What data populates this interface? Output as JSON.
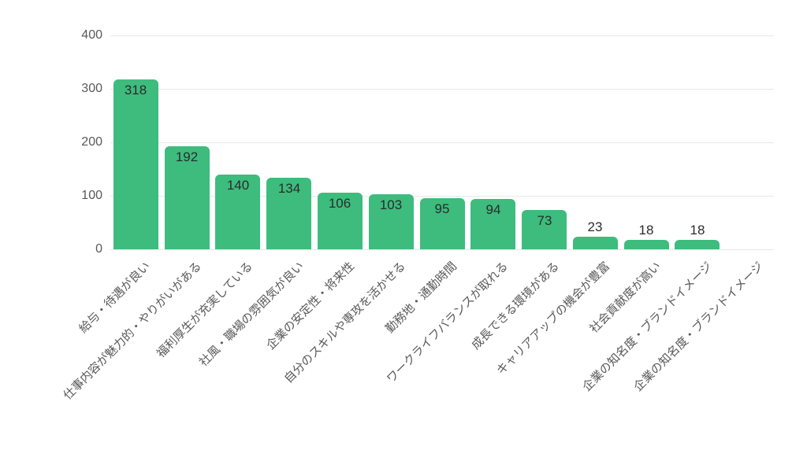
{
  "chart_data": {
    "type": "bar",
    "title": "",
    "xlabel": "",
    "ylabel": "",
    "categories": [
      "給与・待遇が良い",
      "仕事内容が魅力的・やりがいがある",
      "福利厚生が充実している",
      "社風・職場の雰囲気が良い",
      "企業の安定性・将来性",
      "自分のスキルや専攻を活かせる",
      "勤務地・通勤時間",
      "ワークライフバランスが取れる",
      "成長できる環境がある",
      "キャリアアップの機会が豊富",
      "社会貢献度が高い",
      "企業の知名度・ブランドイメージ",
      "企業の知名度・ブランドイメージ"
    ],
    "values": [
      318,
      192,
      140,
      134,
      106,
      103,
      95,
      94,
      73,
      23,
      18,
      18,
      0
    ],
    "value_labels_shown": [
      "318",
      "192",
      "140",
      "134",
      "106",
      "103",
      "95",
      "94",
      "73",
      "23",
      "18",
      "18",
      ""
    ],
    "ylim": [
      0,
      400
    ],
    "yticks": [
      "0",
      "100",
      "200",
      "300",
      "400"
    ],
    "grid": true,
    "legend": "none",
    "colors": {
      "bar": "#3dbc7d",
      "value_label": "#2b2b2b",
      "axis_tick_label": "#595959",
      "category_label": "#595959",
      "gridline": "#e8e8e8",
      "background": "#ffffff"
    }
  }
}
